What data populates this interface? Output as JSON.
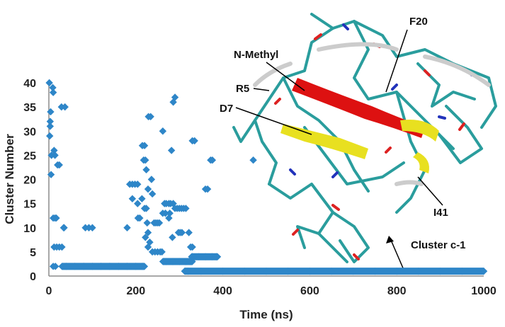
{
  "chart_data": {
    "type": "scatter",
    "xlabel": "Time (ns)",
    "ylabel": "Cluster Number",
    "xlim": [
      0,
      1000
    ],
    "ylim": [
      0,
      40
    ],
    "xticks": [
      "0",
      "200",
      "400",
      "600",
      "800",
      "1000"
    ],
    "yticks": [
      "0",
      "5",
      "10",
      "15",
      "20",
      "25",
      "30",
      "35",
      "40"
    ],
    "grid": false,
    "marker": "diamond",
    "series_color": "#2e86c8",
    "series": [
      {
        "points": [
          [
            1,
            40
          ],
          [
            4,
            34
          ],
          [
            3,
            32
          ],
          [
            3,
            31
          ],
          [
            2,
            29
          ],
          [
            6,
            25
          ],
          [
            5,
            21
          ],
          [
            9,
            39
          ],
          [
            10,
            38
          ],
          [
            12,
            26
          ],
          [
            14,
            25
          ],
          [
            20,
            23
          ],
          [
            24,
            23
          ],
          [
            29,
            35
          ],
          [
            37,
            35
          ],
          [
            34,
            10
          ],
          [
            35,
            10
          ],
          [
            10,
            12
          ],
          [
            14,
            12
          ],
          [
            17,
            12
          ],
          [
            12,
            6
          ],
          [
            18,
            6
          ],
          [
            24,
            6
          ],
          [
            30,
            6
          ],
          [
            10,
            2
          ],
          [
            15,
            2
          ],
          [
            84,
            10
          ],
          [
            92,
            10
          ],
          [
            100,
            10
          ],
          [
            180,
            10
          ],
          [
            186,
            19
          ],
          [
            192,
            19
          ],
          [
            198,
            19
          ],
          [
            204,
            19
          ],
          [
            192,
            16
          ],
          [
            204,
            15
          ],
          [
            205,
            12
          ],
          [
            209,
            12
          ],
          [
            215,
            27
          ],
          [
            220,
            27
          ],
          [
            218,
            24
          ],
          [
            222,
            24
          ],
          [
            224,
            22
          ],
          [
            228,
            18
          ],
          [
            214,
            16
          ],
          [
            220,
            14
          ],
          [
            224,
            14
          ],
          [
            226,
            11
          ],
          [
            228,
            9
          ],
          [
            232,
            7
          ],
          [
            222,
            8
          ],
          [
            228,
            6
          ],
          [
            229,
            33
          ],
          [
            234,
            33
          ],
          [
            236,
            20
          ],
          [
            238,
            17
          ],
          [
            242,
            11
          ],
          [
            246,
            11
          ],
          [
            250,
            11
          ],
          [
            254,
            11
          ],
          [
            238,
            5
          ],
          [
            244,
            5
          ],
          [
            250,
            5
          ],
          [
            256,
            5
          ],
          [
            260,
            5
          ],
          [
            262,
            30
          ],
          [
            266,
            15
          ],
          [
            270,
            15
          ],
          [
            276,
            15
          ],
          [
            280,
            15
          ],
          [
            286,
            15
          ],
          [
            262,
            13
          ],
          [
            268,
            13
          ],
          [
            278,
            13
          ],
          [
            282,
            26
          ],
          [
            286,
            36
          ],
          [
            290,
            37
          ],
          [
            276,
            12
          ],
          [
            284,
            8
          ],
          [
            290,
            14
          ],
          [
            295,
            14
          ],
          [
            300,
            14
          ],
          [
            305,
            14
          ],
          [
            310,
            14
          ],
          [
            315,
            14
          ],
          [
            298,
            9
          ],
          [
            302,
            9
          ],
          [
            306,
            9
          ],
          [
            330,
            28
          ],
          [
            335,
            28
          ],
          [
            322,
            9
          ],
          [
            326,
            6
          ],
          [
            330,
            6
          ],
          [
            360,
            18
          ],
          [
            365,
            18
          ],
          [
            372,
            24
          ],
          [
            376,
            24
          ],
          [
            470,
            24
          ],
          [
            40,
            2
          ],
          [
            60,
            2
          ],
          [
            80,
            2
          ],
          [
            100,
            2
          ],
          [
            120,
            2
          ],
          [
            140,
            2
          ],
          [
            160,
            2
          ],
          [
            180,
            2
          ],
          [
            200,
            2
          ],
          [
            215,
            2
          ],
          [
            270,
            3
          ],
          [
            285,
            3
          ],
          [
            300,
            3
          ],
          [
            315,
            3
          ],
          [
            325,
            3
          ],
          [
            330,
            4
          ],
          [
            345,
            4
          ],
          [
            360,
            4
          ],
          [
            375,
            4
          ],
          [
            385,
            4
          ],
          [
            320,
            1
          ],
          [
            350,
            1
          ],
          [
            400,
            1
          ],
          [
            450,
            1
          ],
          [
            500,
            1
          ],
          [
            550,
            1
          ],
          [
            600,
            1
          ],
          [
            650,
            1
          ],
          [
            700,
            1
          ],
          [
            750,
            1
          ],
          [
            800,
            1
          ],
          [
            850,
            1
          ],
          [
            900,
            1
          ],
          [
            950,
            1
          ],
          [
            1000,
            1
          ]
        ],
        "bands": [
          {
            "y": 2,
            "x0": 30,
            "x1": 220
          },
          {
            "y": 3,
            "x0": 262,
            "x1": 330
          },
          {
            "y": 4,
            "x0": 328,
            "x1": 388
          },
          {
            "y": 1,
            "x0": 312,
            "x1": 1000
          }
        ]
      }
    ],
    "annotations": [
      "N-Methyl",
      "F20",
      "R5",
      "D7",
      "I41",
      "Cluster c-1"
    ]
  }
}
